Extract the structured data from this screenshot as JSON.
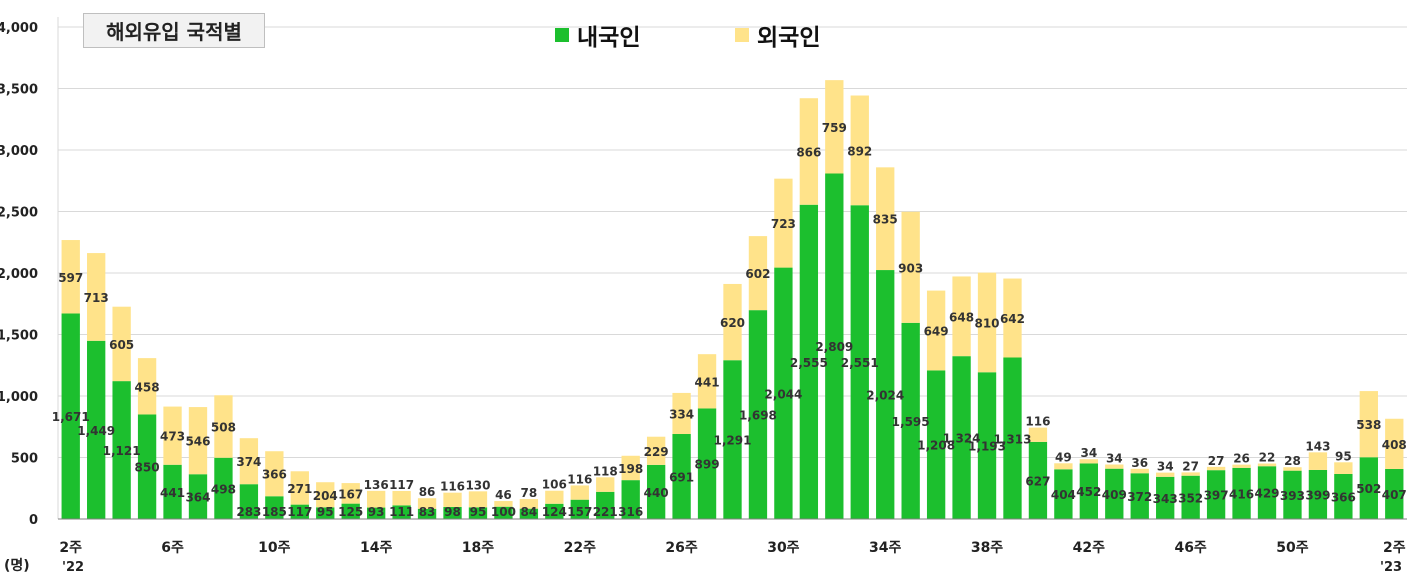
{
  "title": "해외유입 국적별",
  "unit_label": "(명)",
  "year_start_label": "'22",
  "year_end_label": "'23",
  "colors": {
    "domestic": "#1cbf2e",
    "foreign": "#ffe38a",
    "grid": "#d9d9d9",
    "axis": "#7f7f7f"
  },
  "chart_data": {
    "type": "bar",
    "stacked": true,
    "ylim": [
      0,
      4000
    ],
    "yticks": [
      0,
      500,
      1000,
      1500,
      2000,
      2500,
      3000,
      3500,
      4000
    ],
    "ytick_labels": [
      "0",
      "500",
      "1,000",
      "1,500",
      "2,000",
      "2,500",
      "3,000",
      "3,500",
      "4,000"
    ],
    "xtick_labels": [
      {
        "index": 0,
        "label": "2주"
      },
      {
        "index": 4,
        "label": "6주"
      },
      {
        "index": 8,
        "label": "10주"
      },
      {
        "index": 12,
        "label": "14주"
      },
      {
        "index": 16,
        "label": "18주"
      },
      {
        "index": 20,
        "label": "22주"
      },
      {
        "index": 24,
        "label": "26주"
      },
      {
        "index": 28,
        "label": "30주"
      },
      {
        "index": 32,
        "label": "34주"
      },
      {
        "index": 36,
        "label": "38주"
      },
      {
        "index": 40,
        "label": "42주"
      },
      {
        "index": 44,
        "label": "46주"
      },
      {
        "index": 48,
        "label": "50주"
      },
      {
        "index": 52,
        "label": "2주"
      }
    ],
    "series": [
      {
        "name": "내국인",
        "color": "#1cbf2e",
        "values": [
          1671,
          1449,
          1121,
          850,
          441,
          364,
          498,
          283,
          185,
          117,
          95,
          125,
          93,
          111,
          83,
          98,
          95,
          100,
          84,
          124,
          157,
          221,
          316,
          440,
          691,
          899,
          1291,
          1698,
          2044,
          2555,
          2809,
          2551,
          2024,
          1595,
          1208,
          1324,
          1193,
          1313,
          627,
          404,
          452,
          409,
          372,
          343,
          352,
          397,
          416,
          429,
          393,
          399,
          366,
          502,
          407
        ],
        "labels": [
          "1,671",
          "1,449",
          "1,121",
          "850",
          "441",
          "364",
          "498",
          "283",
          "185",
          "117",
          "95",
          "125",
          "93",
          "111",
          "83",
          "98",
          "95",
          "100",
          "84",
          "124",
          "157",
          "221",
          "316",
          "440",
          "691",
          "899",
          "1,291",
          "1,698",
          "2,044",
          "2,555",
          "2,809",
          "2,551",
          "2,024",
          "1,595",
          "1,208",
          "1,324",
          "1,193",
          "1,313",
          "627",
          "404",
          "452",
          "409",
          "372",
          "343",
          "352",
          "397",
          "416",
          "429",
          "393",
          "399",
          "366",
          "502",
          "407"
        ]
      },
      {
        "name": "외국인",
        "color": "#ffe38a",
        "values": [
          597,
          713,
          605,
          458,
          473,
          546,
          508,
          374,
          366,
          271,
          204,
          167,
          136,
          117,
          86,
          116,
          130,
          46,
          78,
          106,
          116,
          118,
          198,
          229,
          334,
          441,
          620,
          602,
          723,
          866,
          759,
          892,
          835,
          903,
          649,
          648,
          810,
          642,
          116,
          49,
          34,
          34,
          36,
          34,
          27,
          27,
          26,
          22,
          28,
          143,
          95,
          538,
          408
        ],
        "labels": [
          "597",
          "713",
          "605",
          "458",
          "473",
          "546",
          "508",
          "374",
          "366",
          "271",
          "204",
          "167",
          "136",
          "117",
          "86",
          "116",
          "130",
          "46",
          "78",
          "106",
          "116",
          "118",
          "198",
          "229",
          "334",
          "441",
          "620",
          "602",
          "723",
          "866",
          "759",
          "892",
          "835",
          "903",
          "649",
          "648",
          "810",
          "642",
          "116",
          "49",
          "34",
          "34",
          "36",
          "34",
          "27",
          "27",
          "26",
          "22",
          "28",
          "143",
          "95",
          "538",
          "408"
        ]
      }
    ]
  }
}
